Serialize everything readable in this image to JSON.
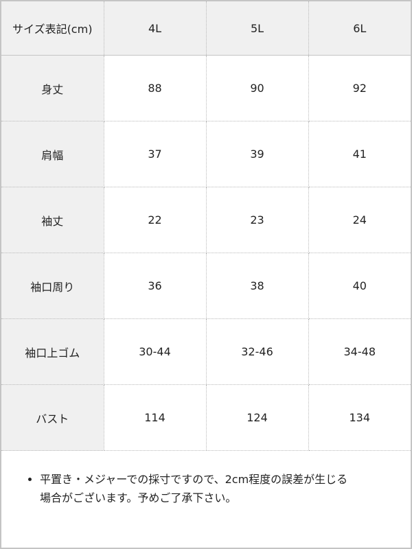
{
  "table": {
    "header": [
      "サイズ表記(cm)",
      "4L",
      "5L",
      "6L"
    ],
    "rows": [
      {
        "label": "身丈",
        "values": [
          "88",
          "90",
          "92"
        ]
      },
      {
        "label": "肩幅",
        "values": [
          "37",
          "39",
          "41"
        ]
      },
      {
        "label": "袖丈",
        "values": [
          "22",
          "23",
          "24"
        ]
      },
      {
        "label": "袖口周り",
        "values": [
          "36",
          "38",
          "40"
        ]
      },
      {
        "label": "袖口上ゴム",
        "values": [
          "30-44",
          "32-46",
          "34-48"
        ]
      },
      {
        "label": "バスト",
        "values": [
          "114",
          "124",
          "134"
        ]
      }
    ]
  },
  "note": {
    "line1": "平置き・メジャーでの採寸ですので、2cm程度の誤差が生じる",
    "line2": "場合がございます。予めご了承下さい。"
  },
  "colors": {
    "label_bg": "#f0f0f0",
    "border": "#c4c4c4"
  }
}
